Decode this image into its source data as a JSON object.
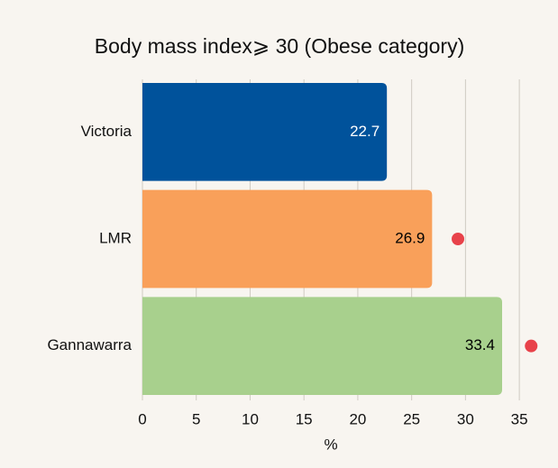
{
  "chart_data": {
    "type": "barh",
    "title": "Body mass index⩾ 30 (Obese category)",
    "categories": [
      "Victoria",
      "LMR",
      "Gannawarra"
    ],
    "values": [
      22.7,
      26.9,
      33.4
    ],
    "colors": [
      "#00529b",
      "#f9a05a",
      "#a8d08d"
    ],
    "value_label_colors": [
      "#ffffff",
      "#000000",
      "#000000"
    ],
    "markers": {
      "color": "#e8424a",
      "values": [
        null,
        29.3,
        36.1
      ]
    },
    "xlabel": "%",
    "xlim": [
      0,
      37
    ],
    "xticks": [
      0,
      5,
      10,
      15,
      20,
      25,
      30,
      35
    ],
    "grid": true
  }
}
